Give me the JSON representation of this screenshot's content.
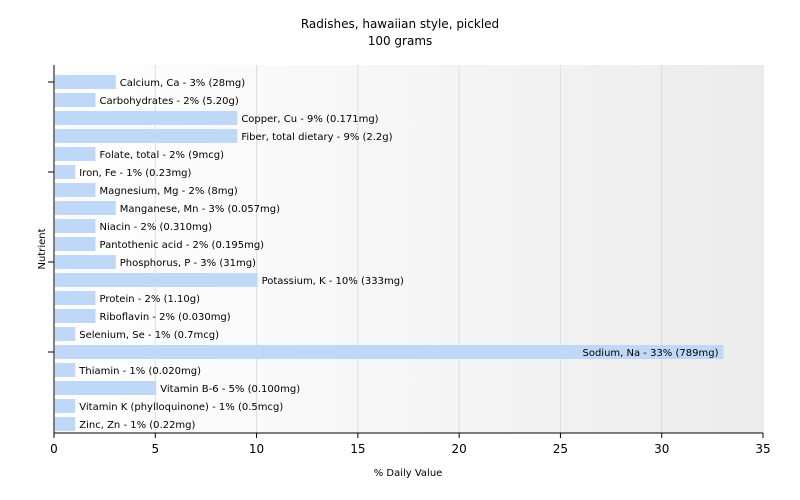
{
  "chart_data": {
    "type": "bar",
    "orientation": "horizontal",
    "title": "Radishes, hawaiian style, pickled",
    "subtitle": "100 grams",
    "xlabel": "% Daily Value",
    "ylabel": "Nutrient",
    "xlim": [
      0,
      35
    ],
    "xticks": [
      "0",
      "5",
      "10",
      "15",
      "20",
      "25",
      "30",
      "35"
    ],
    "grid": true,
    "categories": [
      "Calcium, Ca",
      "Carbohydrates",
      "Copper, Cu",
      "Fiber, total dietary",
      "Folate, total",
      "Iron, Fe",
      "Magnesium, Mg",
      "Manganese, Mn",
      "Niacin",
      "Pantothenic acid",
      "Phosphorus, P",
      "Potassium, K",
      "Protein",
      "Riboflavin",
      "Selenium, Se",
      "Sodium, Na",
      "Thiamin",
      "Vitamin B-6",
      "Vitamin K (phylloquinone)",
      "Zinc, Zn"
    ],
    "values": [
      3,
      2,
      9,
      9,
      2,
      1,
      2,
      3,
      2,
      2,
      3,
      10,
      2,
      2,
      1,
      33,
      1,
      5,
      1,
      1
    ],
    "labels": [
      "Calcium, Ca - 3% (28mg)",
      "Carbohydrates - 2% (5.20g)",
      "Copper, Cu - 9% (0.171mg)",
      "Fiber, total dietary - 9% (2.2g)",
      "Folate, total - 2% (9mcg)",
      "Iron, Fe - 1% (0.23mg)",
      "Magnesium, Mg - 2% (8mg)",
      "Manganese, Mn - 3% (0.057mg)",
      "Niacin - 2% (0.310mg)",
      "Pantothenic acid - 2% (0.195mg)",
      "Phosphorus, P - 3% (31mg)",
      "Potassium, K - 10% (333mg)",
      "Protein - 2% (1.10g)",
      "Riboflavin - 2% (0.030mg)",
      "Selenium, Se - 1% (0.7mcg)",
      "Sodium, Na - 33% (789mg)",
      "Thiamin - 1% (0.020mg)",
      "Vitamin B-6 - 5% (0.100mg)",
      "Vitamin K (phylloquinone) - 1% (0.5mcg)",
      "Zinc, Zn - 1% (0.22mg)"
    ],
    "colors": {
      "bar": "#c0d8f8",
      "axis": "#000000",
      "grid": "#dddddd",
      "background_start": "#ffffff",
      "background_end": "#ececec"
    }
  }
}
